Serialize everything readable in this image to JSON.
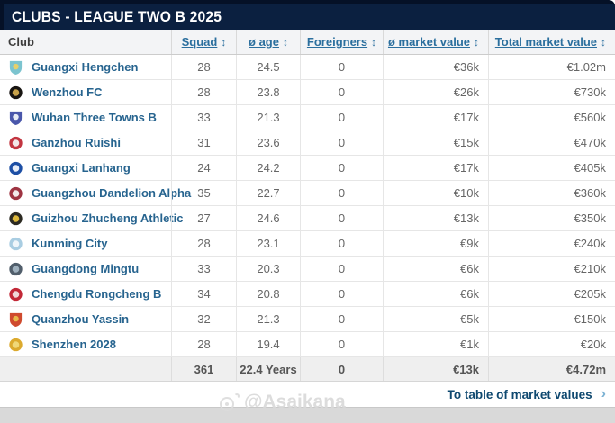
{
  "title": "CLUBS - LEAGUE TWO B 2025",
  "ui": {
    "sort_icon": "↕",
    "chevron": "›"
  },
  "columns": {
    "club": "Club",
    "squad": "Squad",
    "age": "ø age",
    "foreigners": "Foreigners",
    "avg_mv": "ø market value",
    "total_mv": "Total market value"
  },
  "rows": [
    {
      "club": "Guangxi Hengchen",
      "squad": "28",
      "age": "24.5",
      "foreigners": "0",
      "avg_mv": "€36k",
      "total_mv": "€1.02m",
      "badge": {
        "shape": "shield",
        "outer": "#7cc4cf",
        "inner": "#e6d06b"
      }
    },
    {
      "club": "Wenzhou FC",
      "squad": "28",
      "age": "23.8",
      "foreigners": "0",
      "avg_mv": "€26k",
      "total_mv": "€730k",
      "badge": {
        "shape": "circle",
        "outer": "#181512",
        "inner": "#c8a24a"
      }
    },
    {
      "club": "Wuhan Three Towns B",
      "squad": "33",
      "age": "21.3",
      "foreigners": "0",
      "avg_mv": "€17k",
      "total_mv": "€560k",
      "badge": {
        "shape": "shield",
        "outer": "#4a57ab",
        "inner": "#e8ecf5"
      }
    },
    {
      "club": "Ganzhou Ruishi",
      "squad": "31",
      "age": "23.6",
      "foreigners": "0",
      "avg_mv": "€15k",
      "total_mv": "€470k",
      "badge": {
        "shape": "circle",
        "outer": "#c23540",
        "inner": "#f3e6e6"
      }
    },
    {
      "club": "Guangxi Lanhang",
      "squad": "24",
      "age": "24.2",
      "foreigners": "0",
      "avg_mv": "€17k",
      "total_mv": "€405k",
      "badge": {
        "shape": "circle",
        "outer": "#1d4fa5",
        "inner": "#e8eef8"
      }
    },
    {
      "club": "Guangzhou Dandelion Alpha",
      "squad": "35",
      "age": "22.7",
      "foreigners": "0",
      "avg_mv": "€10k",
      "total_mv": "€360k",
      "badge": {
        "shape": "circle",
        "outer": "#9e3442",
        "inner": "#f2e9e9"
      }
    },
    {
      "club": "Guizhou Zhucheng Athletic",
      "squad": "27",
      "age": "24.6",
      "foreigners": "0",
      "avg_mv": "€13k",
      "total_mv": "€350k",
      "badge": {
        "shape": "circle",
        "outer": "#2c2a22",
        "inner": "#ddb93c"
      }
    },
    {
      "club": "Kunming City",
      "squad": "28",
      "age": "23.1",
      "foreigners": "0",
      "avg_mv": "€9k",
      "total_mv": "€240k",
      "badge": {
        "shape": "circle",
        "outer": "#a9cde2",
        "inner": "#eef5fa"
      }
    },
    {
      "club": "Guangdong Mingtu",
      "squad": "33",
      "age": "20.3",
      "foreigners": "0",
      "avg_mv": "€6k",
      "total_mv": "€210k",
      "badge": {
        "shape": "circle",
        "outer": "#515e6b",
        "inner": "#9fb0bd"
      }
    },
    {
      "club": "Chengdu Rongcheng B",
      "squad": "34",
      "age": "20.8",
      "foreigners": "0",
      "avg_mv": "€6k",
      "total_mv": "€205k",
      "badge": {
        "shape": "circle",
        "outer": "#c22837",
        "inner": "#f0d8d8"
      }
    },
    {
      "club": "Quanzhou Yassin",
      "squad": "32",
      "age": "21.3",
      "foreigners": "0",
      "avg_mv": "€5k",
      "total_mv": "€150k",
      "badge": {
        "shape": "shield",
        "outer": "#cf4a2e",
        "inner": "#e8b84a"
      }
    },
    {
      "club": "Shenzhen 2028",
      "squad": "28",
      "age": "19.4",
      "foreigners": "0",
      "avg_mv": "€1k",
      "total_mv": "€20k",
      "badge": {
        "shape": "circle",
        "outer": "#dcaa2e",
        "inner": "#f0d878"
      }
    }
  ],
  "totals": {
    "squad": "361",
    "age": "22.4 Years",
    "foreigners": "0",
    "avg_mv": "€13k",
    "total_mv": "€4.72m"
  },
  "footer": {
    "link_label": "To table of market values"
  },
  "watermark": {
    "handle": "@Asaikana"
  },
  "colors": {
    "title_bar": "#0b2040",
    "header_link": "#2b6f9e",
    "club_link": "#27648f",
    "value_blue": "#3f7195",
    "footer_link": "#0e486f",
    "totals_bg": "#efefef"
  }
}
